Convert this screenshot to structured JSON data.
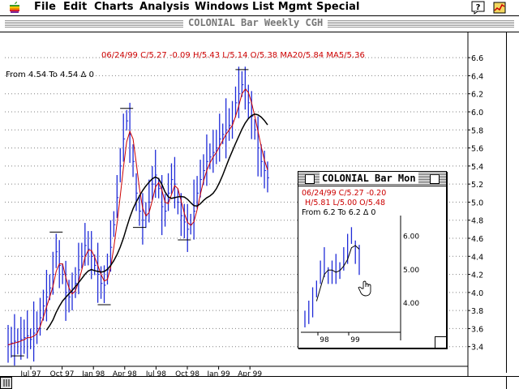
{
  "menubar": {
    "items": [
      "File",
      "Edit",
      "Charts",
      "Analysis",
      "Windows",
      "List Mgmt",
      "Special"
    ],
    "icons": [
      "apple-icon",
      "help-icon",
      "app-icon"
    ]
  },
  "main_window": {
    "title": "COLONIAL Bar Weekly  CGH",
    "info_line": "06/24/99 C/5.27 -0.09 H/5.43 L/5.14 O/5.38 MA20/5.84 MA5/5.36",
    "range_readout": "From  4.54 To  4.54 Δ  0"
  },
  "sub_window": {
    "title": "COLONIAL Bar Mon",
    "info_line1": "06/24/99 C/5.27 -0.20",
    "info_line2": "H/5.81 L/5.00 O/5.48",
    "range_readout": "From  6.2 To  6.2 Δ  0",
    "y_ticks": [
      "6.00",
      "5.00",
      "4.00"
    ],
    "x_ticks": [
      "98",
      "99"
    ]
  },
  "colors": {
    "info_red": "#cc0000",
    "ma_fast": "#cc0000",
    "ma_slow": "#000000",
    "bars": "#1f2bd8",
    "grid": "#808080"
  },
  "chart_data": [
    {
      "type": "bar",
      "title": "COLONIAL Bar Weekly  CGH",
      "x_ticks": [
        "Jul 97",
        "Oct 97",
        "Jan 98",
        "Apr 98",
        "Jul 98",
        "Oct 98",
        "Jan 99",
        "Apr 99"
      ],
      "y_ticks": [
        3.4,
        3.6,
        3.8,
        4.0,
        4.2,
        4.4,
        4.6,
        4.8,
        5.0,
        5.2,
        5.4,
        5.6,
        5.8,
        6.0,
        6.2,
        6.4,
        6.6
      ],
      "ylim": [
        3.2,
        6.7
      ],
      "grid": true,
      "close_series": [
        3.42,
        3.44,
        3.46,
        3.45,
        3.48,
        3.5,
        3.52,
        3.48,
        3.55,
        3.6,
        3.72,
        3.85,
        3.95,
        4.05,
        4.2,
        4.45,
        4.3,
        4.2,
        4.0,
        3.95,
        4.0,
        4.1,
        4.25,
        4.4,
        4.52,
        4.48,
        4.4,
        4.3,
        4.2,
        4.1,
        4.08,
        4.25,
        4.5,
        4.75,
        5.05,
        5.4,
        5.7,
        5.9,
        5.75,
        5.45,
        5.1,
        4.9,
        4.8,
        4.85,
        5.0,
        5.2,
        5.3,
        5.15,
        4.95,
        4.9,
        5.1,
        5.25,
        5.2,
        5.0,
        4.85,
        4.78,
        4.7,
        4.75,
        4.9,
        5.1,
        5.25,
        5.35,
        5.45,
        5.5,
        5.55,
        5.6,
        5.7,
        5.75,
        5.8,
        5.85,
        5.9,
        6.1,
        6.2,
        6.3,
        6.25,
        6.1,
        5.95,
        5.8,
        5.6,
        5.45,
        5.35,
        5.27
      ],
      "ma_fast_label": "MA5",
      "ma_slow_label": "MA20"
    },
    {
      "type": "bar",
      "title": "COLONIAL Bar Mon",
      "x_ticks": [
        "98",
        "99"
      ],
      "y_ticks": [
        4.0,
        5.0,
        6.0
      ],
      "ylim": [
        3.2,
        6.5
      ],
      "close_series": [
        3.5,
        3.7,
        4.0,
        4.4,
        4.9,
        5.2,
        4.8,
        4.9,
        5.0,
        4.95,
        5.3,
        5.6,
        6.0,
        5.5,
        5.27
      ]
    }
  ]
}
